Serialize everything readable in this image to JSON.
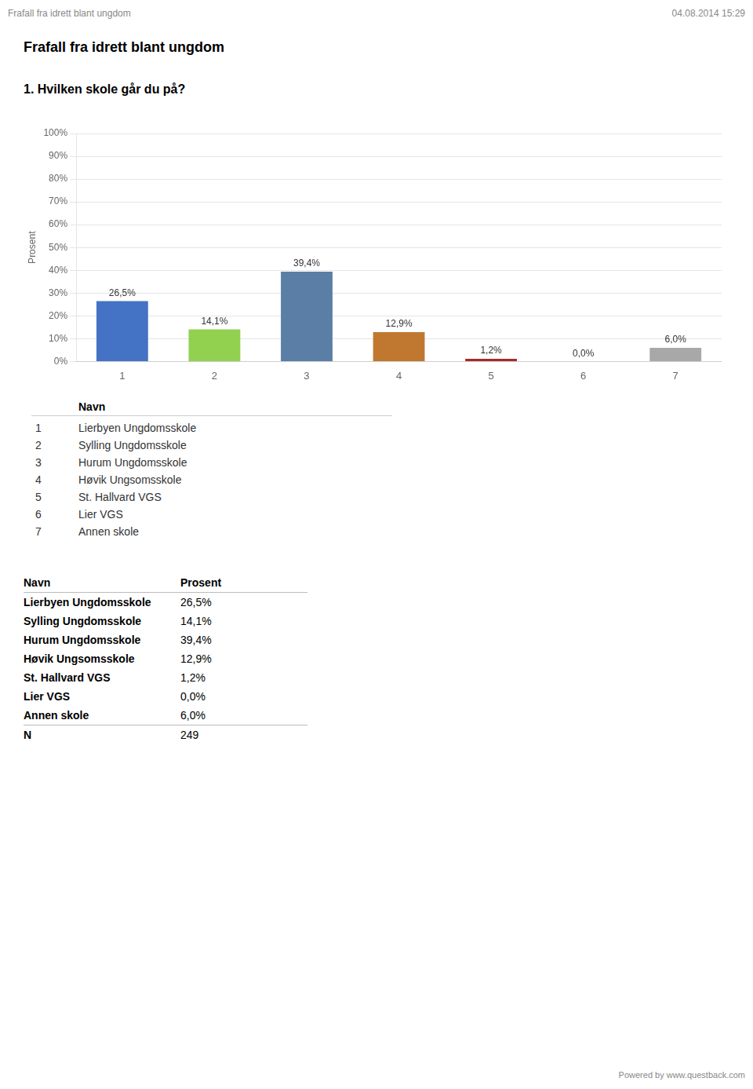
{
  "chart_data": {
    "type": "bar",
    "title": "Frafall fra idrett blant ungdom",
    "subtitle": "1. Hvilken skole går du på?",
    "annotations": [
      "Frafall fra idrett blant ungdom",
      "04.08.2014 15:29",
      "Powered by www.questback.com"
    ],
    "categories": [
      "1",
      "2",
      "3",
      "4",
      "5",
      "6",
      "7"
    ],
    "values": [
      26.5,
      14.1,
      39.4,
      12.9,
      1.2,
      0.0,
      6.0
    ],
    "value_labels": [
      "26,5%",
      "14,1%",
      "39,4%",
      "12,9%",
      "1,2%",
      "0,0%",
      "6,0%"
    ],
    "data_labels": true,
    "colors": [
      "#4472C4",
      "#92D050",
      "#5B7EA6",
      "#C07830",
      "#A52A2A",
      "#AAAAAA",
      "#A8A8A8"
    ],
    "ylabel": "Prosent",
    "ylim": [
      0,
      100
    ],
    "yticks": [
      {
        "value": 0,
        "label": "0%"
      },
      {
        "value": 10,
        "label": "10%"
      },
      {
        "value": 20,
        "label": "20%"
      },
      {
        "value": 30,
        "label": "30%"
      },
      {
        "value": 40,
        "label": "40%"
      },
      {
        "value": 50,
        "label": "50%"
      },
      {
        "value": 60,
        "label": "60%"
      },
      {
        "value": 70,
        "label": "70%"
      },
      {
        "value": 80,
        "label": "80%"
      },
      {
        "value": 90,
        "label": "90%"
      },
      {
        "value": 100,
        "label": "100%"
      }
    ],
    "grid": true,
    "key": {
      "header": "Navn",
      "items": [
        {
          "num": "1",
          "name": "Lierbyen Ungdomsskole"
        },
        {
          "num": "2",
          "name": "Sylling Ungdomsskole"
        },
        {
          "num": "3",
          "name": "Hurum Ungdomsskole"
        },
        {
          "num": "4",
          "name": "Høvik Ungsomsskole"
        },
        {
          "num": "5",
          "name": "St. Hallvard VGS"
        },
        {
          "num": "6",
          "name": "Lier VGS"
        },
        {
          "num": "7",
          "name": "Annen skole"
        }
      ]
    },
    "table": {
      "header": [
        "Navn",
        "Prosent"
      ],
      "rows": [
        [
          "Lierbyen Ungdomsskole",
          "26,5%"
        ],
        [
          "Sylling Ungdomsskole",
          "14,1%"
        ],
        [
          "Hurum Ungdomsskole",
          "39,4%"
        ],
        [
          "Høvik Ungsomsskole",
          "12,9%"
        ],
        [
          "St. Hallvard VGS",
          "1,2%"
        ],
        [
          "Lier VGS",
          "0,0%"
        ],
        [
          "Annen skole",
          "6,0%"
        ]
      ],
      "n_label": "N",
      "n_value": 249
    }
  }
}
